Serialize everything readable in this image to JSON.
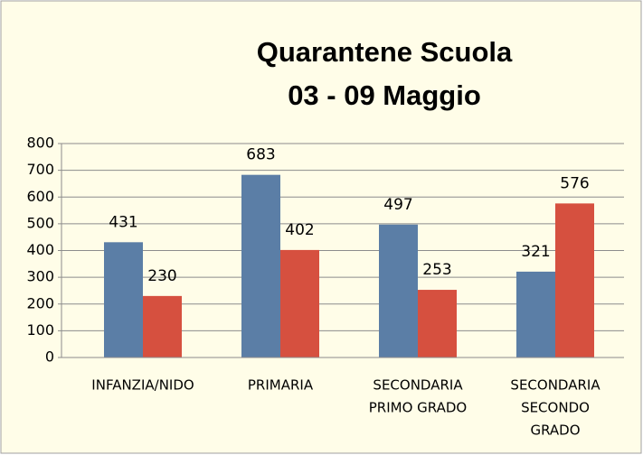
{
  "chart_data": {
    "type": "bar",
    "title": [
      "Quarantene Scuola",
      "03 - 09 Maggio"
    ],
    "categories": [
      [
        "INFANZIA/NIDO"
      ],
      [
        "PRIMARIA"
      ],
      [
        "SECONDARIA",
        "PRIMO GRADO"
      ],
      [
        "SECONDARIA",
        "SECONDO",
        "GRADO"
      ]
    ],
    "series": [
      {
        "color": "#5b7ea6",
        "values": [
          431,
          683,
          497,
          321
        ]
      },
      {
        "color": "#d6503f",
        "values": [
          230,
          402,
          253,
          576
        ]
      }
    ],
    "ylim": [
      0,
      800
    ],
    "yticks": [
      0,
      100,
      200,
      300,
      400,
      500,
      600,
      700,
      800
    ],
    "grid": true
  }
}
